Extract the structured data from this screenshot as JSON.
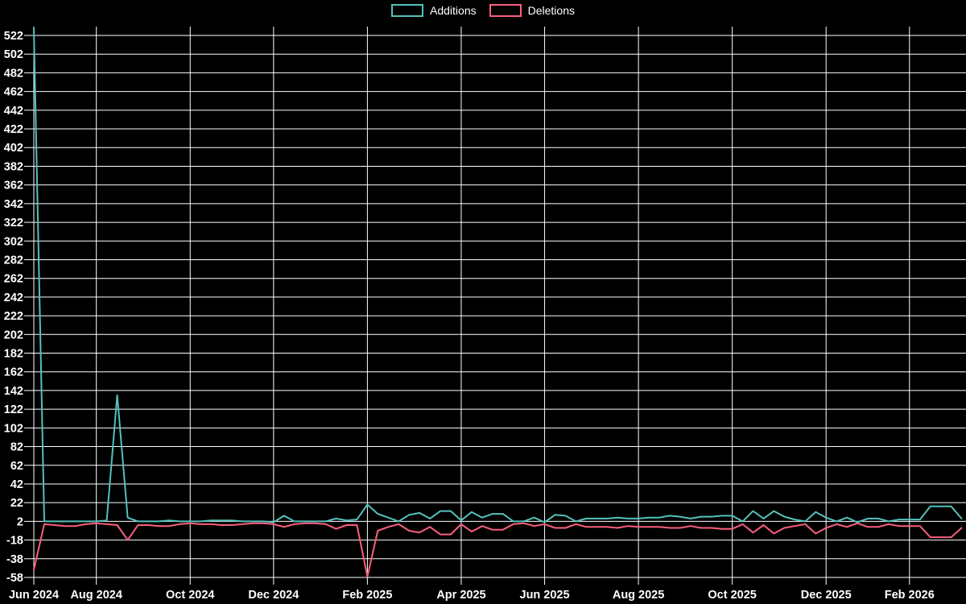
{
  "legend": [
    {
      "label": "Additions",
      "color": "#53c2bb"
    },
    {
      "label": "Deletions",
      "color": "#fa5f7e"
    }
  ],
  "colors": {
    "background": "#000000",
    "grid": "#ffffff",
    "text": "#ffffff",
    "additions": "#53c2bb",
    "deletions": "#fa5f7e"
  },
  "chart_data": {
    "type": "line",
    "title": "",
    "xlabel": "",
    "ylabel": "",
    "x_unit": "week",
    "legend_position": "top-center",
    "grid": true,
    "ylim": [
      -58,
      531
    ],
    "y_ticks": [
      522,
      502,
      482,
      462,
      442,
      422,
      402,
      382,
      362,
      342,
      322,
      302,
      282,
      262,
      242,
      222,
      202,
      182,
      162,
      142,
      122,
      102,
      82,
      62,
      42,
      22,
      2,
      -18,
      -38,
      -58
    ],
    "x_tick_labels": [
      "Jun 2024",
      "Aug 2024",
      "Oct 2024",
      "Dec 2024",
      "Feb 2025",
      "Apr 2025",
      "Jun 2025",
      "Aug 2025",
      "Oct 2025",
      "Dec 2025",
      "Feb 2026"
    ],
    "x_tick_weeks": [
      0,
      6,
      15,
      23,
      32,
      41,
      49,
      58,
      67,
      76,
      84
    ],
    "weeks_total": 90,
    "series": [
      {
        "name": "Additions",
        "color": "#53c2bb",
        "values": [
          530,
          2,
          2,
          2,
          2,
          2,
          2,
          3,
          137,
          6,
          2,
          2,
          2,
          3,
          2,
          2,
          2,
          3,
          3,
          3,
          2,
          2,
          2,
          1,
          8,
          2,
          2,
          2,
          2,
          5,
          3,
          4,
          20,
          10,
          6,
          2,
          9,
          11,
          5,
          13,
          13,
          3,
          12,
          6,
          10,
          10,
          2,
          2,
          6,
          1,
          9,
          8,
          2,
          5,
          5,
          5,
          6,
          5,
          5,
          6,
          6,
          8,
          7,
          5,
          7,
          7,
          8,
          8,
          2,
          13,
          5,
          13,
          7,
          4,
          2,
          12,
          6,
          2,
          6,
          1,
          5,
          5,
          2,
          4,
          4,
          4,
          18,
          18,
          18,
          5
        ]
      },
      {
        "name": "Deletions",
        "color": "#fa5f7e",
        "values": [
          -50,
          -1,
          -2,
          -3,
          -3,
          -1,
          0,
          -1,
          -2,
          -18,
          -2,
          -2,
          -3,
          -3,
          -1,
          0,
          -1,
          -1,
          -2,
          -2,
          -1,
          0,
          0,
          -1,
          -4,
          -1,
          0,
          0,
          -1,
          -6,
          -2,
          -2,
          -57,
          -8,
          -4,
          -1,
          -8,
          -10,
          -4,
          -12,
          -12,
          -1,
          -9,
          -3,
          -7,
          -7,
          -1,
          0,
          -3,
          -1,
          -5,
          -5,
          -1,
          -4,
          -4,
          -4,
          -5,
          -3,
          -4,
          -4,
          -4,
          -5,
          -5,
          -3,
          -5,
          -5,
          -6,
          -6,
          -1,
          -10,
          -2,
          -11,
          -5,
          -3,
          -1,
          -11,
          -5,
          -1,
          -4,
          0,
          -4,
          -4,
          -1,
          -3,
          -3,
          -3,
          -15,
          -15,
          -15,
          -5
        ]
      }
    ]
  }
}
